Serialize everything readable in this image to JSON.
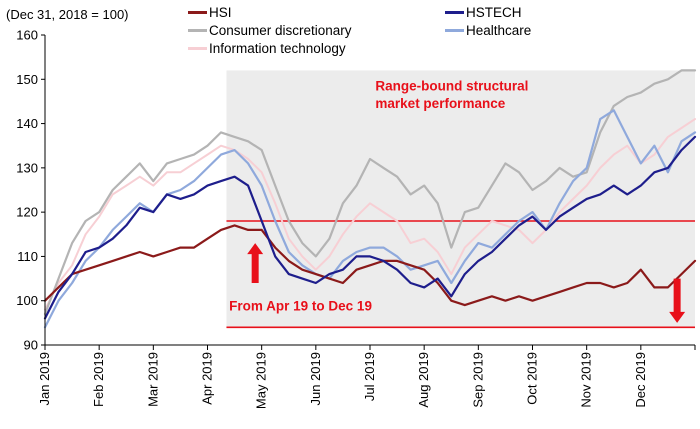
{
  "chart_data": {
    "type": "line",
    "base_note": "(Dec 31, 2018 = 100)",
    "ylim": [
      90,
      160
    ],
    "yticks": [
      90,
      100,
      110,
      120,
      130,
      140,
      150,
      160
    ],
    "x_months": [
      "Jan 2019",
      "Feb 2019",
      "Mar 2019",
      "Apr 2019",
      "May 2019",
      "Jun 2019",
      "Jul 2019",
      "Aug 2019",
      "Sep 2019",
      "Oct 2019",
      "Nov 2019",
      "Dec 2019"
    ],
    "x": [
      0,
      0.25,
      0.5,
      0.75,
      1,
      1.25,
      1.5,
      1.75,
      2,
      2.25,
      2.5,
      2.75,
      3,
      3.25,
      3.5,
      3.75,
      4,
      4.25,
      4.5,
      4.75,
      5,
      5.25,
      5.5,
      5.75,
      6,
      6.25,
      6.5,
      6.75,
      7,
      7.25,
      7.5,
      7.75,
      8,
      8.25,
      8.5,
      8.75,
      9,
      9.25,
      9.5,
      9.75,
      10,
      10.25,
      10.5,
      10.75,
      11,
      11.25,
      11.5,
      11.75,
      12
    ],
    "series": [
      {
        "name": "HSI",
        "color": "#8b1a1a",
        "width": 2.2,
        "values": [
          100,
          103,
          106,
          107,
          108,
          109,
          110,
          111,
          110,
          111,
          112,
          112,
          114,
          116,
          117,
          116,
          116,
          112,
          109,
          107,
          106,
          105,
          104,
          107,
          108,
          109,
          109,
          108,
          107,
          104,
          100,
          99,
          100,
          101,
          100,
          101,
          100,
          101,
          102,
          103,
          104,
          104,
          103,
          104,
          107,
          103,
          103,
          106,
          109
        ]
      },
      {
        "name": "HSTECH",
        "color": "#1e1e8c",
        "width": 2.2,
        "values": [
          96,
          102,
          106,
          111,
          112,
          114,
          117,
          121,
          120,
          124,
          123,
          124,
          126,
          127,
          128,
          126,
          118,
          110,
          106,
          105,
          104,
          106,
          107,
          110,
          110,
          109,
          107,
          104,
          103,
          105,
          101,
          106,
          109,
          111,
          114,
          117,
          119,
          116,
          119,
          121,
          123,
          124,
          126,
          124,
          126,
          129,
          130,
          134,
          137
        ]
      },
      {
        "name": "Consumer discretionary",
        "color": "#b4b4b4",
        "width": 2.2,
        "values": [
          97,
          105,
          113,
          118,
          120,
          125,
          128,
          131,
          127,
          131,
          132,
          133,
          135,
          138,
          137,
          136,
          134,
          126,
          118,
          113,
          110,
          114,
          122,
          126,
          132,
          130,
          128,
          124,
          126,
          122,
          112,
          120,
          121,
          126,
          131,
          129,
          125,
          127,
          130,
          128,
          129,
          138,
          144,
          146,
          147,
          149,
          150,
          152,
          152
        ]
      },
      {
        "name": "Healthcare",
        "color": "#8fa9dc",
        "width": 2.2,
        "values": [
          94,
          100,
          104,
          109,
          112,
          116,
          119,
          122,
          120,
          124,
          125,
          127,
          130,
          133,
          134,
          131,
          126,
          118,
          111,
          108,
          106,
          105,
          109,
          111,
          112,
          112,
          110,
          107,
          108,
          109,
          104,
          109,
          113,
          112,
          115,
          118,
          120,
          116,
          122,
          127,
          130,
          141,
          143,
          137,
          131,
          135,
          129,
          136,
          138
        ]
      },
      {
        "name": "Information technology",
        "color": "#f7cfd4",
        "width": 2.0,
        "values": [
          98,
          104,
          108,
          115,
          119,
          124,
          126,
          128,
          126,
          129,
          129,
          131,
          133,
          135,
          134,
          132,
          129,
          122,
          114,
          110,
          107,
          110,
          115,
          119,
          122,
          120,
          118,
          113,
          114,
          111,
          106,
          112,
          115,
          118,
          117,
          116,
          113,
          116,
          120,
          123,
          126,
          130,
          133,
          135,
          131,
          133,
          137,
          139,
          141
        ]
      }
    ],
    "reference_lines": [
      {
        "y": 118,
        "from_x": 3.35,
        "to_x": 12,
        "color": "#e8101a"
      },
      {
        "y": 94,
        "from_x": 3.35,
        "to_x": 12,
        "color": "#e8101a"
      }
    ],
    "shaded_region": {
      "x_from": 3.35,
      "x_to": 12,
      "y_from": 94,
      "y_to": 152,
      "color": "#ececec"
    },
    "annotations": [
      {
        "text": "Range-bound structural",
        "x": 6.1,
        "y": 147.5
      },
      {
        "text": "market performance",
        "x": 6.1,
        "y": 143.5
      },
      {
        "text": "From Apr 19 to Dec 19",
        "x": 3.4,
        "y": 97.8
      }
    ],
    "arrows": [
      {
        "direction": "up",
        "x": 3.88,
        "y_tail": 104,
        "y_head": 113
      },
      {
        "direction": "down",
        "x": 11.67,
        "y_tail": 105,
        "y_head": 95
      }
    ],
    "legend": [
      {
        "name": "HSI",
        "color": "#8b1a1a"
      },
      {
        "name": "HSTECH",
        "color": "#1e1e8c"
      },
      {
        "name": "Consumer discretionary",
        "color": "#b4b4b4"
      },
      {
        "name": "Healthcare",
        "color": "#8fa9dc"
      },
      {
        "name": "Information technology",
        "color": "#f7cfd4"
      }
    ],
    "legend_placement": "top",
    "grid": false
  }
}
